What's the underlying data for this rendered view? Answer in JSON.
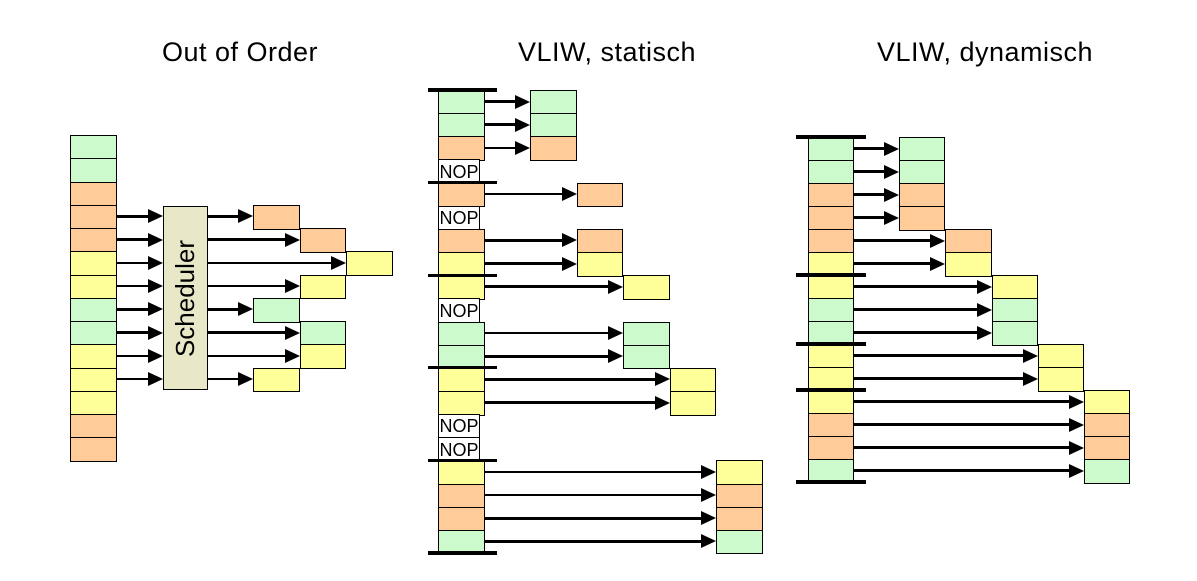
{
  "palette": {
    "green": "#CCFACC",
    "orange": "#FFCC99",
    "yellow": "#FFFF99",
    "scheduler": "#E8E8C8",
    "line": "#000000",
    "background": "#FFFFFF"
  },
  "diagrams": [
    {
      "title": "Out of Order",
      "scheduler_label": "Scheduler",
      "fetch_cells": [
        "green",
        "green",
        "orange",
        "orange",
        "orange",
        "yellow",
        "yellow",
        "green",
        "green",
        "yellow",
        "yellow",
        "yellow",
        "orange",
        "orange"
      ],
      "issues": [
        {
          "row": 3,
          "cycle": 0
        },
        {
          "row": 4,
          "cycle": 1
        },
        {
          "row": 5,
          "cycle": 2
        },
        {
          "row": 6,
          "cycle": 1
        },
        {
          "row": 7,
          "cycle": 0
        },
        {
          "row": 8,
          "cycle": 1
        },
        {
          "row": 9,
          "cycle": 1
        },
        {
          "row": 10,
          "cycle": 0
        }
      ]
    },
    {
      "title": "VLIW, statisch",
      "nop_label": "NOP",
      "slots": [
        {
          "color": "green",
          "cycle": 0
        },
        {
          "color": "green",
          "cycle": 0
        },
        {
          "color": "orange",
          "cycle": 0
        },
        {
          "nop": true
        },
        {
          "color": "orange",
          "cycle": 1
        },
        {
          "nop": true
        },
        {
          "color": "orange",
          "cycle": 1
        },
        {
          "color": "yellow",
          "cycle": 1
        },
        {
          "color": "yellow",
          "cycle": 2
        },
        {
          "nop": true
        },
        {
          "color": "green",
          "cycle": 2
        },
        {
          "color": "green",
          "cycle": 2
        },
        {
          "color": "yellow",
          "cycle": 3
        },
        {
          "color": "yellow",
          "cycle": 3
        },
        {
          "nop": true
        },
        {
          "nop": true
        },
        {
          "color": "yellow",
          "cycle": 4
        },
        {
          "color": "orange",
          "cycle": 4
        },
        {
          "color": "orange",
          "cycle": 4
        },
        {
          "color": "green",
          "cycle": 4
        }
      ],
      "bundle_breaks": [
        0,
        4,
        8,
        12,
        16,
        20
      ]
    },
    {
      "title": "VLIW, dynamisch",
      "slots": [
        {
          "color": "green",
          "cycle": 0
        },
        {
          "color": "green",
          "cycle": 0
        },
        {
          "color": "orange",
          "cycle": 0
        },
        {
          "color": "orange",
          "cycle": 0
        },
        {
          "color": "orange",
          "cycle": 1
        },
        {
          "color": "yellow",
          "cycle": 1
        },
        {
          "color": "yellow",
          "cycle": 2
        },
        {
          "color": "green",
          "cycle": 2
        },
        {
          "color": "green",
          "cycle": 2
        },
        {
          "color": "yellow",
          "cycle": 3
        },
        {
          "color": "yellow",
          "cycle": 3
        },
        {
          "color": "yellow",
          "cycle": 4
        },
        {
          "color": "orange",
          "cycle": 4
        },
        {
          "color": "orange",
          "cycle": 4
        },
        {
          "color": "green",
          "cycle": 4
        }
      ],
      "bundle_breaks": [
        0,
        6,
        9,
        11,
        15
      ]
    }
  ]
}
